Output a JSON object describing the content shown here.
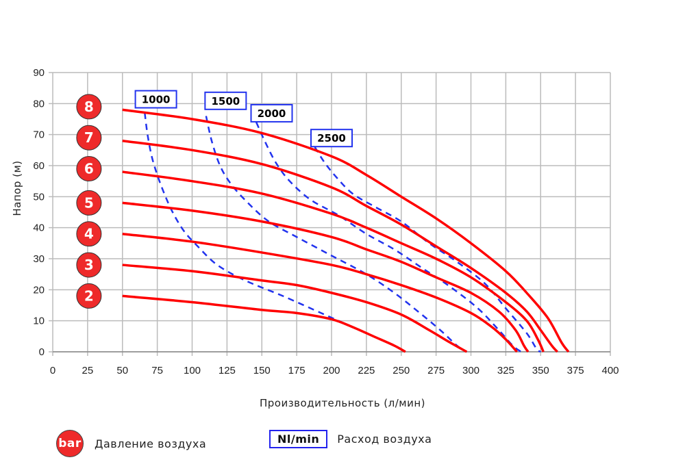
{
  "chart_data": {
    "type": "line",
    "title": "",
    "xlabel": "Производительность (л/мин)",
    "ylabel": "Напор (м)",
    "xlim": [
      0,
      400
    ],
    "ylim": [
      0,
      90
    ],
    "xticks": [
      0,
      25,
      50,
      75,
      100,
      125,
      150,
      175,
      200,
      225,
      250,
      275,
      300,
      325,
      350,
      375,
      400
    ],
    "yticks": [
      0,
      10,
      20,
      30,
      40,
      50,
      60,
      70,
      80,
      90
    ],
    "grid": true,
    "pressure_series": [
      {
        "name": "8 bar",
        "badge": "8",
        "badge_y": 79,
        "points": [
          [
            50,
            78
          ],
          [
            100,
            75
          ],
          [
            150,
            70.5
          ],
          [
            200,
            63
          ],
          [
            225,
            57
          ],
          [
            250,
            50
          ],
          [
            275,
            43
          ],
          [
            300,
            35
          ],
          [
            325,
            26
          ],
          [
            340,
            19
          ],
          [
            355,
            11
          ],
          [
            365,
            3
          ],
          [
            370,
            0
          ]
        ]
      },
      {
        "name": "7 bar",
        "badge": "7",
        "badge_y": 69,
        "points": [
          [
            50,
            68
          ],
          [
            100,
            65
          ],
          [
            150,
            60.5
          ],
          [
            200,
            53
          ],
          [
            225,
            47
          ],
          [
            250,
            41
          ],
          [
            275,
            34
          ],
          [
            300,
            27
          ],
          [
            325,
            19
          ],
          [
            340,
            13
          ],
          [
            350,
            7
          ],
          [
            358,
            2
          ],
          [
            362,
            0
          ]
        ]
      },
      {
        "name": "6 bar",
        "badge": "6",
        "badge_y": 59,
        "points": [
          [
            50,
            58
          ],
          [
            100,
            55
          ],
          [
            150,
            51
          ],
          [
            200,
            44.5
          ],
          [
            225,
            40
          ],
          [
            250,
            35
          ],
          [
            275,
            30
          ],
          [
            300,
            24
          ],
          [
            325,
            16
          ],
          [
            340,
            10
          ],
          [
            348,
            4
          ],
          [
            352,
            0
          ]
        ]
      },
      {
        "name": "5 bar",
        "badge": "5",
        "badge_y": 48,
        "points": [
          [
            50,
            48
          ],
          [
            100,
            45.5
          ],
          [
            150,
            42
          ],
          [
            200,
            37
          ],
          [
            225,
            33
          ],
          [
            250,
            29
          ],
          [
            275,
            24
          ],
          [
            300,
            19
          ],
          [
            320,
            13
          ],
          [
            332,
            7
          ],
          [
            338,
            2
          ],
          [
            341,
            0
          ]
        ]
      },
      {
        "name": "4 bar",
        "badge": "4",
        "badge_y": 38,
        "points": [
          [
            50,
            38
          ],
          [
            100,
            35.5
          ],
          [
            150,
            32
          ],
          [
            200,
            28
          ],
          [
            225,
            25
          ],
          [
            250,
            21.5
          ],
          [
            275,
            17.5
          ],
          [
            300,
            12.5
          ],
          [
            315,
            8
          ],
          [
            325,
            4
          ],
          [
            333,
            0
          ]
        ]
      },
      {
        "name": "3 bar",
        "badge": "3",
        "badge_y": 28,
        "points": [
          [
            50,
            28
          ],
          [
            100,
            26
          ],
          [
            150,
            23
          ],
          [
            175,
            21.5
          ],
          [
            200,
            19
          ],
          [
            225,
            16
          ],
          [
            250,
            12
          ],
          [
            270,
            7
          ],
          [
            285,
            3
          ],
          [
            297,
            0
          ]
        ]
      },
      {
        "name": "2 bar",
        "badge": "2",
        "badge_y": 18,
        "points": [
          [
            50,
            18
          ],
          [
            100,
            16
          ],
          [
            150,
            13.5
          ],
          [
            175,
            12.5
          ],
          [
            200,
            10.5
          ],
          [
            215,
            8
          ],
          [
            230,
            5
          ],
          [
            245,
            2
          ],
          [
            253,
            0
          ]
        ]
      }
    ],
    "airflow_series": [
      {
        "name": "1000 Nl/min",
        "label": "1000",
        "label_pos": [
          74,
          81.5
        ],
        "points": [
          [
            66,
            77
          ],
          [
            68,
            70
          ],
          [
            71,
            63
          ],
          [
            75,
            57
          ],
          [
            80,
            51
          ],
          [
            86,
            45
          ],
          [
            94,
            39
          ],
          [
            104,
            34
          ],
          [
            118,
            28
          ],
          [
            138,
            23
          ],
          [
            165,
            18
          ],
          [
            195,
            12
          ],
          [
            220,
            7
          ],
          [
            240,
            3
          ],
          [
            253,
            0
          ]
        ]
      },
      {
        "name": "1500 Nl/min",
        "label": "1500",
        "label_pos": [
          124,
          81
        ],
        "points": [
          [
            110,
            76
          ],
          [
            114,
            68
          ],
          [
            120,
            60
          ],
          [
            128,
            54
          ],
          [
            140,
            48
          ],
          [
            155,
            42
          ],
          [
            175,
            37
          ],
          [
            200,
            31
          ],
          [
            225,
            25
          ],
          [
            245,
            19
          ],
          [
            262,
            13
          ],
          [
            278,
            7
          ],
          [
            290,
            2
          ],
          [
            297,
            0
          ]
        ]
      },
      {
        "name": "2000 Nl/min",
        "label": "2000",
        "label_pos": [
          157,
          77
        ],
        "points": [
          [
            146,
            74
          ],
          [
            152,
            68
          ],
          [
            160,
            61
          ],
          [
            170,
            55
          ],
          [
            185,
            49
          ],
          [
            205,
            44
          ],
          [
            225,
            38
          ],
          [
            245,
            33
          ],
          [
            265,
            27
          ],
          [
            285,
            21
          ],
          [
            305,
            14
          ],
          [
            320,
            7
          ],
          [
            330,
            2
          ],
          [
            336,
            0
          ]
        ]
      },
      {
        "name": "2500 Nl/min",
        "label": "2500",
        "label_pos": [
          200,
          69
        ],
        "points": [
          [
            188,
            66
          ],
          [
            195,
            61
          ],
          [
            204,
            56
          ],
          [
            215,
            51
          ],
          [
            230,
            47
          ],
          [
            250,
            42
          ],
          [
            270,
            35
          ],
          [
            290,
            29
          ],
          [
            310,
            22
          ],
          [
            325,
            14
          ],
          [
            340,
            6
          ],
          [
            347,
            1
          ],
          [
            350,
            0
          ]
        ]
      }
    ]
  },
  "legend": {
    "badge_label": "bar",
    "badge_text": "Давление воздуха",
    "box_label": "Nl/min",
    "box_text": "Расход воздуха"
  },
  "colors": {
    "pressure_curve": "#ff0000",
    "airflow_curve": "#2233ee",
    "badge_fill": "#ee2a2a",
    "grid": "#bbbbbb"
  }
}
